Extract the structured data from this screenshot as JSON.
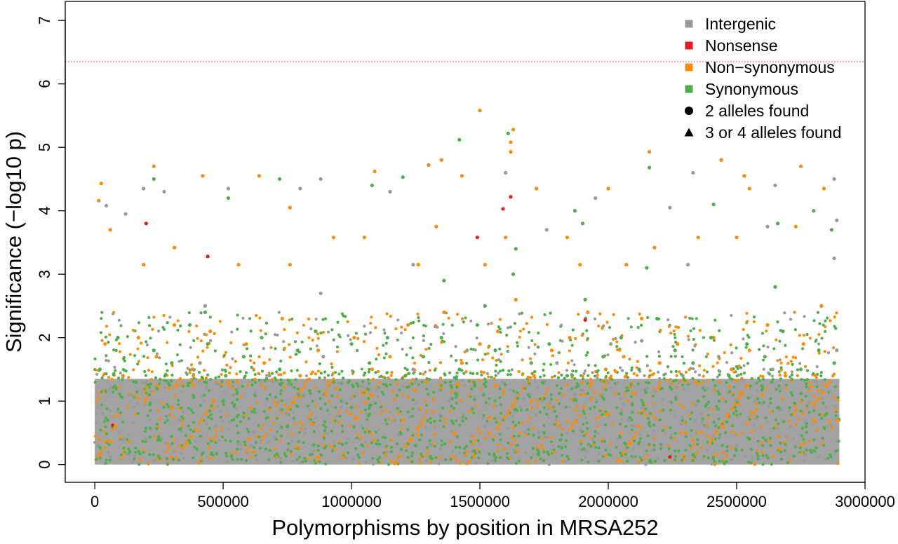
{
  "chart_data": {
    "type": "scatter",
    "title": "",
    "xlabel": "Polymorphisms by position in MRSA252",
    "ylabel": "Significance (−log10 p)",
    "xlim": [
      -115000,
      3000000
    ],
    "ylim": [
      -0.28,
      7.3
    ],
    "x_ticks": [
      0,
      500000,
      1000000,
      1500000,
      2000000,
      2500000,
      3000000
    ],
    "x_tick_labels": [
      "0",
      "500000",
      "1000000",
      "1500000",
      "2000000",
      "2500000",
      "3000000"
    ],
    "y_ticks": [
      0,
      1,
      2,
      3,
      4,
      5,
      6,
      7
    ],
    "y_tick_labels": [
      "0",
      "1",
      "2",
      "3",
      "4",
      "5",
      "6",
      "7"
    ],
    "threshold": {
      "y": 6.35,
      "color": "#d62728",
      "style": "dotted"
    },
    "grid": false,
    "legend_position": "top-right",
    "legend": [
      {
        "label": "Intergenic",
        "color": "#999999",
        "shape": "square"
      },
      {
        "label": "Nonsense",
        "color": "#e41a1c",
        "shape": "square"
      },
      {
        "label": "Non−synonymous",
        "color": "#ff8c00",
        "shape": "square"
      },
      {
        "label": "Synonymous",
        "color": "#4daf4a",
        "shape": "square"
      },
      {
        "label": "2 alleles found",
        "color": "#000000",
        "shape": "circle"
      },
      {
        "label": "3 or 4 alleles found",
        "color": "#000000",
        "shape": "triangle"
      }
    ],
    "series": [
      {
        "name": "Intergenic",
        "color": "#999999",
        "points": [
          [
            12000,
            0.3
          ],
          [
            30000,
            0.8
          ],
          [
            60000,
            1.2
          ],
          [
            95000,
            0.5
          ],
          [
            150000,
            0.9
          ],
          [
            200000,
            1.3
          ],
          [
            260000,
            0.4
          ],
          [
            330000,
            0.7
          ],
          [
            410000,
            1.6
          ],
          [
            470000,
            0.6
          ],
          [
            540000,
            1.1
          ],
          [
            610000,
            0.3
          ],
          [
            680000,
            1.4
          ],
          [
            750000,
            0.8
          ],
          [
            820000,
            0.5
          ],
          [
            890000,
            1.7
          ],
          [
            960000,
            0.9
          ],
          [
            1030000,
            0.4
          ],
          [
            1100000,
            1.2
          ],
          [
            1170000,
            0.7
          ],
          [
            1240000,
            1.5
          ],
          [
            1310000,
            0.3
          ],
          [
            1380000,
            1.0
          ],
          [
            1450000,
            1.8
          ],
          [
            1520000,
            0.6
          ],
          [
            1590000,
            1.3
          ],
          [
            1660000,
            0.9
          ],
          [
            1730000,
            0.5
          ],
          [
            1800000,
            1.6
          ],
          [
            1870000,
            1.1
          ],
          [
            1940000,
            0.4
          ],
          [
            2010000,
            1.9
          ],
          [
            2080000,
            0.7
          ],
          [
            2150000,
            1.2
          ],
          [
            2220000,
            0.5
          ],
          [
            2290000,
            1.4
          ],
          [
            2360000,
            0.8
          ],
          [
            2430000,
            1.7
          ],
          [
            2500000,
            0.3
          ],
          [
            2570000,
            1.0
          ],
          [
            2640000,
            1.5
          ],
          [
            2710000,
            0.6
          ],
          [
            2780000,
            1.2
          ],
          [
            2850000,
            0.9
          ],
          [
            2890000,
            1.8
          ],
          [
            45000,
            4.08
          ],
          [
            190000,
            4.35
          ],
          [
            270000,
            4.3
          ],
          [
            520000,
            4.35
          ],
          [
            800000,
            4.35
          ],
          [
            880000,
            4.5
          ],
          [
            1150000,
            4.3
          ],
          [
            1600000,
            4.6
          ],
          [
            1950000,
            4.2
          ],
          [
            2240000,
            4.05
          ],
          [
            2330000,
            4.6
          ],
          [
            2650000,
            4.4
          ],
          [
            2880000,
            4.5
          ],
          [
            2890000,
            3.85
          ],
          [
            2880000,
            3.25
          ],
          [
            2620000,
            3.75
          ],
          [
            1760000,
            3.7
          ],
          [
            1240000,
            3.15
          ],
          [
            880000,
            2.7
          ],
          [
            430000,
            2.5
          ],
          [
            120000,
            3.95
          ],
          [
            2310000,
            3.15
          ],
          [
            2130000,
            1.95
          ],
          [
            2400000,
            2.0
          ]
        ]
      },
      {
        "name": "Nonsense",
        "color": "#e41a1c",
        "points": [
          [
            200000,
            3.8
          ],
          [
            440000,
            3.28
          ],
          [
            1620000,
            4.22
          ],
          [
            1590000,
            4.03
          ],
          [
            1490000,
            3.58
          ],
          [
            1910000,
            2.28
          ],
          [
            70000,
            0.62
          ],
          [
            2240000,
            0.12
          ]
        ]
      },
      {
        "name": "Non−synonymous",
        "color": "#ff8c00",
        "points": [
          [
            15000,
            4.16
          ],
          [
            25000,
            4.43
          ],
          [
            230000,
            4.7
          ],
          [
            420000,
            4.55
          ],
          [
            640000,
            4.55
          ],
          [
            760000,
            4.05
          ],
          [
            1090000,
            4.62
          ],
          [
            1300000,
            4.72
          ],
          [
            1350000,
            4.8
          ],
          [
            1500000,
            5.58
          ],
          [
            1630000,
            5.28
          ],
          [
            1620000,
            5.08
          ],
          [
            1620000,
            4.93
          ],
          [
            2160000,
            4.93
          ],
          [
            2440000,
            4.8
          ],
          [
            2530000,
            4.55
          ],
          [
            2750000,
            4.7
          ],
          [
            2550000,
            4.35
          ],
          [
            2840000,
            4.35
          ],
          [
            2000000,
            4.35
          ],
          [
            1720000,
            4.35
          ],
          [
            1430000,
            4.55
          ],
          [
            930000,
            3.58
          ],
          [
            1050000,
            3.58
          ],
          [
            1330000,
            3.75
          ],
          [
            1600000,
            3.58
          ],
          [
            1840000,
            3.58
          ],
          [
            2180000,
            3.42
          ],
          [
            2350000,
            3.58
          ],
          [
            2500000,
            3.58
          ],
          [
            2730000,
            3.75
          ],
          [
            190000,
            3.15
          ],
          [
            310000,
            3.42
          ],
          [
            560000,
            3.15
          ],
          [
            760000,
            3.15
          ],
          [
            1260000,
            3.15
          ],
          [
            1520000,
            3.15
          ],
          [
            1890000,
            3.15
          ],
          [
            2070000,
            3.15
          ],
          [
            60000,
            3.7
          ],
          [
            40000,
            1.9
          ],
          [
            110000,
            1.4
          ],
          [
            170000,
            2.0
          ],
          [
            240000,
            1.7
          ],
          [
            310000,
            2.2
          ],
          [
            380000,
            1.5
          ],
          [
            450000,
            2.1
          ],
          [
            520000,
            1.3
          ],
          [
            590000,
            1.9
          ],
          [
            660000,
            1.6
          ],
          [
            730000,
            2.3
          ],
          [
            800000,
            1.4
          ],
          [
            870000,
            1.8
          ],
          [
            940000,
            1.2
          ],
          [
            1010000,
            2.0
          ],
          [
            1080000,
            1.5
          ],
          [
            1150000,
            1.7
          ],
          [
            1220000,
            2.2
          ],
          [
            1290000,
            1.3
          ],
          [
            1360000,
            2.4
          ],
          [
            1430000,
            1.6
          ],
          [
            1500000,
            1.9
          ],
          [
            1570000,
            2.1
          ],
          [
            1640000,
            2.6
          ],
          [
            1710000,
            1.4
          ],
          [
            1780000,
            1.8
          ],
          [
            1850000,
            2.0
          ],
          [
            1920000,
            2.4
          ],
          [
            1990000,
            1.5
          ],
          [
            2060000,
            1.7
          ],
          [
            2130000,
            2.3
          ],
          [
            2200000,
            1.6
          ],
          [
            2270000,
            1.9
          ],
          [
            2340000,
            1.3
          ],
          [
            2410000,
            2.0
          ],
          [
            2480000,
            1.5
          ],
          [
            2550000,
            1.8
          ],
          [
            2620000,
            2.2
          ],
          [
            2690000,
            1.4
          ],
          [
            2760000,
            1.9
          ],
          [
            2830000,
            2.5
          ],
          [
            80000,
            0.6
          ],
          [
            300000,
            0.9
          ],
          [
            600000,
            0.4
          ],
          [
            900000,
            1.1
          ],
          [
            1200000,
            0.7
          ],
          [
            1400000,
            0.5
          ],
          [
            1700000,
            1.0
          ],
          [
            2000000,
            0.8
          ],
          [
            2300000,
            0.5
          ],
          [
            2600000,
            1.1
          ],
          [
            2800000,
            0.7
          ]
        ]
      },
      {
        "name": "Synonymous",
        "color": "#4daf4a",
        "points": [
          [
            1420000,
            5.12
          ],
          [
            1610000,
            5.22
          ],
          [
            520000,
            4.2
          ],
          [
            230000,
            4.5
          ],
          [
            1080000,
            4.4
          ],
          [
            1200000,
            4.53
          ],
          [
            2160000,
            4.68
          ],
          [
            2410000,
            4.1
          ],
          [
            2800000,
            4.0
          ],
          [
            2870000,
            3.7
          ],
          [
            1900000,
            3.8
          ],
          [
            1640000,
            3.4
          ],
          [
            1360000,
            2.9
          ],
          [
            1520000,
            2.5
          ],
          [
            2150000,
            3.1
          ],
          [
            2660000,
            3.8
          ],
          [
            720000,
            4.5
          ],
          [
            2650000,
            2.8
          ],
          [
            430000,
            2.4
          ],
          [
            1870000,
            4.0
          ],
          [
            20000,
            1.5
          ],
          [
            90000,
            2.0
          ],
          [
            160000,
            1.3
          ],
          [
            230000,
            1.8
          ],
          [
            300000,
            1.6
          ],
          [
            370000,
            2.2
          ],
          [
            440000,
            1.9
          ],
          [
            510000,
            1.4
          ],
          [
            580000,
            1.7
          ],
          [
            650000,
            2.0
          ],
          [
            720000,
            1.5
          ],
          [
            790000,
            1.8
          ],
          [
            860000,
            2.1
          ],
          [
            930000,
            1.3
          ],
          [
            1000000,
            1.9
          ],
          [
            1070000,
            1.6
          ],
          [
            1140000,
            2.0
          ],
          [
            1210000,
            1.4
          ],
          [
            1280000,
            1.7
          ],
          [
            1350000,
            2.0
          ],
          [
            1420000,
            1.5
          ],
          [
            1490000,
            2.2
          ],
          [
            1560000,
            1.8
          ],
          [
            1630000,
            3.0
          ],
          [
            1700000,
            1.6
          ],
          [
            1770000,
            1.9
          ],
          [
            1840000,
            1.4
          ],
          [
            1910000,
            2.6
          ],
          [
            1980000,
            1.7
          ],
          [
            2050000,
            2.0
          ],
          [
            2120000,
            1.5
          ],
          [
            2190000,
            2.3
          ],
          [
            2260000,
            1.8
          ],
          [
            2330000,
            1.6
          ],
          [
            2400000,
            2.0
          ],
          [
            2470000,
            1.4
          ],
          [
            2540000,
            1.9
          ],
          [
            2610000,
            1.7
          ],
          [
            2680000,
            2.1
          ],
          [
            2750000,
            1.5
          ],
          [
            2820000,
            1.8
          ],
          [
            2880000,
            1.6
          ],
          [
            50000,
            0.7
          ],
          [
            250000,
            0.4
          ],
          [
            500000,
            1.0
          ],
          [
            750000,
            0.6
          ],
          [
            1000000,
            0.9
          ],
          [
            1250000,
            0.3
          ],
          [
            1515000,
            1.1
          ],
          [
            1750000,
            0.5
          ],
          [
            2050000,
            0.8
          ],
          [
            2350000,
            1.0
          ],
          [
            2550000,
            0.4
          ],
          [
            2850000,
            0.8
          ]
        ]
      }
    ]
  }
}
